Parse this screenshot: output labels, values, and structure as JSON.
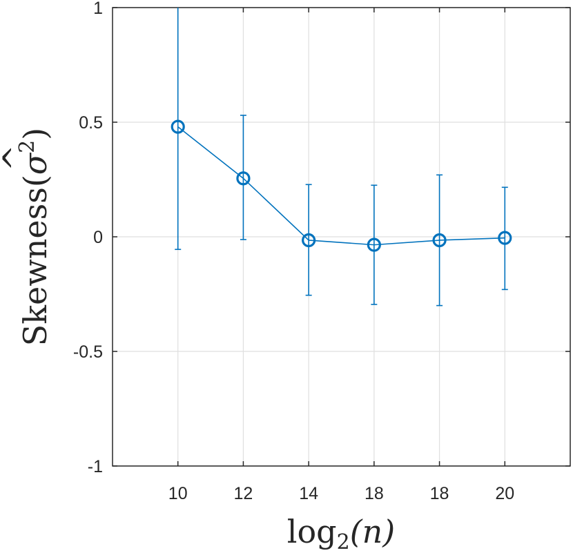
{
  "chart_data": {
    "type": "line",
    "title": "",
    "xlabel": "log2(n)",
    "ylabel": "Skewness(σ^2)",
    "xlabel_parts": {
      "base": "log",
      "sub": "2",
      "arg": "(n)"
    },
    "ylabel_parts": {
      "text": "Skewness(",
      "sigma": "σ",
      "hat": "^",
      "sup": "2",
      "close": ")"
    },
    "categories": [
      "10",
      "12",
      "14",
      "18",
      "18",
      "20"
    ],
    "positions": [
      1,
      2,
      3,
      4,
      5,
      6
    ],
    "xlim": [
      0,
      7
    ],
    "ylim": [
      -1,
      1
    ],
    "yticks": [
      -1,
      -0.5,
      0,
      0.5,
      1
    ],
    "ytick_labels": [
      "-1",
      "-0.5",
      "0",
      "0.5",
      "1"
    ],
    "grid": true,
    "series": [
      {
        "name": "Skewness",
        "color": "#0072BD",
        "marker": "circle",
        "values": [
          0.48,
          0.255,
          -0.015,
          -0.035,
          -0.015,
          -0.005
        ],
        "err_lower": [
          -0.055,
          -0.012,
          -0.255,
          -0.295,
          -0.3,
          -0.23
        ],
        "err_upper": [
          1.0,
          0.53,
          0.228,
          0.225,
          0.27,
          0.216
        ]
      }
    ]
  }
}
